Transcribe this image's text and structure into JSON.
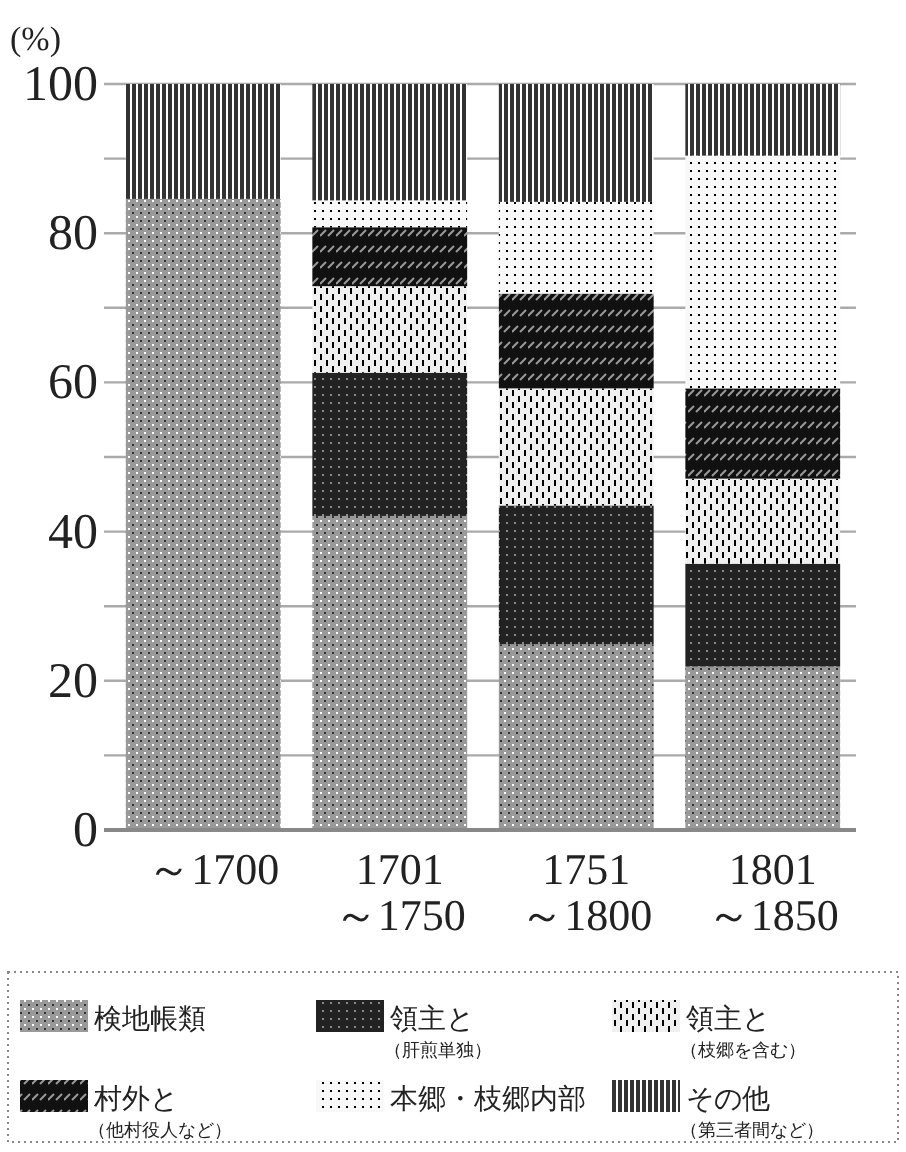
{
  "chart_data": {
    "type": "bar",
    "stacked": true,
    "ylabel": "(%)",
    "categories": [
      "～1700",
      "1701\n～1750",
      "1751\n～1800",
      "1801\n～1850"
    ],
    "series": [
      {
        "name": "検地帳類",
        "color": "#999999",
        "values": [
          84.6,
          42.1,
          24.9,
          21.9
        ]
      },
      {
        "name": "領主と（肝煎単独）",
        "color": "#222222",
        "values": [
          0,
          19.2,
          18.6,
          13.8
        ]
      },
      {
        "name": "領主と（枝郷を含む）",
        "color": "#f0f0f0",
        "values": [
          0,
          11.6,
          15.7,
          11.4
        ]
      },
      {
        "name": "村外と（他村役人など）",
        "color": "#111111",
        "values": [
          0,
          7.9,
          12.7,
          12.1
        ]
      },
      {
        "name": "本郷・枝郷内部",
        "color": "#f8f8f8",
        "values": [
          0,
          3.6,
          12.3,
          31.2
        ]
      },
      {
        "name": "その他（第三者間など）",
        "color": "#333333",
        "values": [
          15.4,
          15.6,
          15.8,
          9.6
        ]
      }
    ],
    "ylim": [
      0,
      100
    ],
    "yticks": [
      0,
      {
        "value": 10,
        "label": null
      },
      20,
      {
        "value": 30,
        "label": null
      },
      40,
      {
        "value": 50,
        "label": null
      },
      60,
      {
        "value": 70,
        "label": null
      },
      80,
      {
        "value": 90,
        "label": null
      },
      100
    ],
    "grid": "y",
    "legend": "bottom"
  }
}
